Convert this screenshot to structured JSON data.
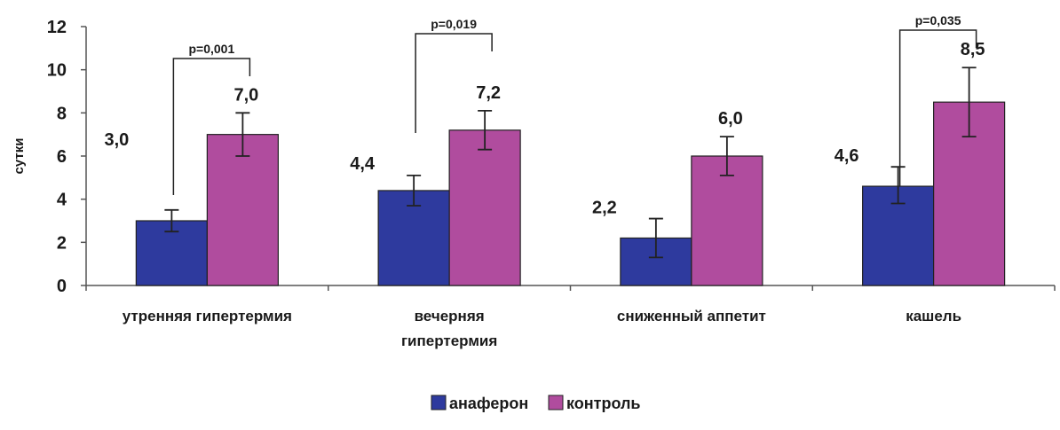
{
  "chart_data": {
    "type": "bar",
    "title": "",
    "xlabel": "",
    "ylabel": "сутки",
    "ylim": [
      0,
      12
    ],
    "yticks": [
      0,
      2,
      4,
      6,
      8,
      10,
      12
    ],
    "grid": false,
    "legend_position": "bottom",
    "categories": [
      [
        "утренняя гипертермия"
      ],
      [
        "вечерняя",
        "гипертермия"
      ],
      [
        "сниженный аппетит"
      ],
      [
        "кашель"
      ]
    ],
    "series": [
      {
        "name": "анаферон",
        "color": "#2E3A9E",
        "values": [
          3.0,
          4.4,
          2.2,
          4.6
        ],
        "labels": [
          "3,0",
          "4,4",
          "2,2",
          "4,6"
        ],
        "err_low": [
          2.5,
          3.7,
          1.3,
          3.8
        ],
        "err_high": [
          3.5,
          5.1,
          3.1,
          5.5
        ]
      },
      {
        "name": "контроль",
        "color": "#B04C9E",
        "values": [
          7.0,
          7.2,
          6.0,
          8.5
        ],
        "labels": [
          "7,0",
          "7,2",
          "6,0",
          "8,5"
        ],
        "err_low": [
          6.0,
          6.3,
          5.1,
          6.9
        ],
        "err_high": [
          8.0,
          8.1,
          6.9,
          10.1
        ]
      }
    ],
    "annotations": [
      {
        "category": 0,
        "text": "p=0,001"
      },
      {
        "category": 1,
        "text": "p=0,019"
      },
      {
        "category": 3,
        "text": "p=0,035"
      }
    ]
  }
}
